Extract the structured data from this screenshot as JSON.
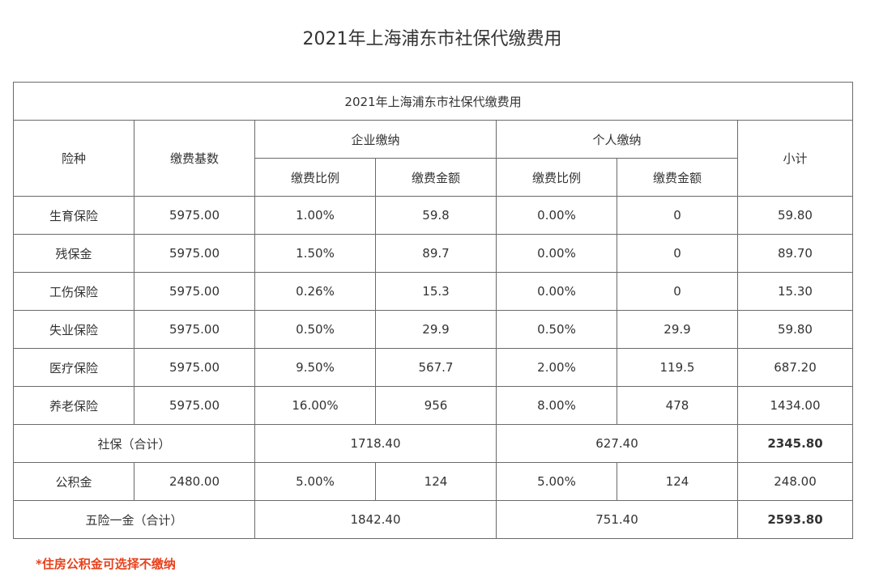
{
  "page_title": "2021年上海浦东市社保代缴费用",
  "table": {
    "caption": "2021年上海浦东市社保代缴费用",
    "headers": {
      "type": "险种",
      "base": "缴费基数",
      "company": "企业缴纳",
      "personal": "个人缴纳",
      "subtotal": "小计",
      "rate": "缴费比例",
      "amount": "缴费金额"
    },
    "rows": [
      {
        "type": "生育保险",
        "base": "5975.00",
        "company_rate": "1.00%",
        "company_amount": "59.8",
        "personal_rate": "0.00%",
        "personal_amount": "0",
        "subtotal": "59.80"
      },
      {
        "type": "残保金",
        "base": "5975.00",
        "company_rate": "1.50%",
        "company_amount": "89.7",
        "personal_rate": "0.00%",
        "personal_amount": "0",
        "subtotal": "89.70"
      },
      {
        "type": "工伤保险",
        "base": "5975.00",
        "company_rate": "0.26%",
        "company_amount": "15.3",
        "personal_rate": "0.00%",
        "personal_amount": "0",
        "subtotal": "15.30"
      },
      {
        "type": "失业保险",
        "base": "5975.00",
        "company_rate": "0.50%",
        "company_amount": "29.9",
        "personal_rate": "0.50%",
        "personal_amount": "29.9",
        "subtotal": "59.80"
      },
      {
        "type": "医疗保险",
        "base": "5975.00",
        "company_rate": "9.50%",
        "company_amount": "567.7",
        "personal_rate": "2.00%",
        "personal_amount": "119.5",
        "subtotal": "687.20"
      },
      {
        "type": "养老保险",
        "base": "5975.00",
        "company_rate": "16.00%",
        "company_amount": "956",
        "personal_rate": "8.00%",
        "personal_amount": "478",
        "subtotal": "1434.00"
      }
    ],
    "social_total": {
      "label": "社保（合计）",
      "company": "1718.40",
      "personal": "627.40",
      "total": "2345.80"
    },
    "housing_fund": {
      "type": "公积金",
      "base": "2480.00",
      "company_rate": "5.00%",
      "company_amount": "124",
      "personal_rate": "5.00%",
      "personal_amount": "124",
      "subtotal": "248.00"
    },
    "grand_total": {
      "label": "五险一金（合计）",
      "company": "1842.40",
      "personal": "751.40",
      "total": "2593.80"
    }
  },
  "footnote": "*住房公积金可选择不缴纳",
  "colors": {
    "highlight": "#e8411c",
    "border": "#6a6a6a",
    "text": "#333333"
  }
}
